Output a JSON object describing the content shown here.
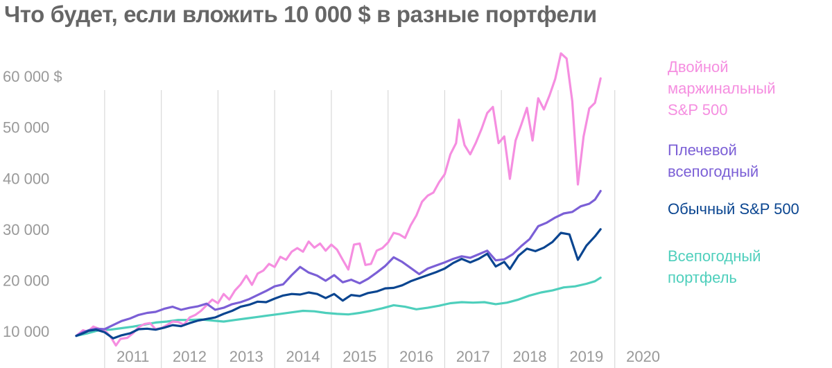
{
  "title": "Что будет, если вложить 10 000 $ в разные портфели",
  "chart_data": {
    "type": "line",
    "title": "Что будет, если вложить 10 000 $ в разные портфели",
    "xlabel": "",
    "ylabel": "",
    "xlim": [
      2010.5,
      2020.75
    ],
    "ylim": [
      7000,
      66000
    ],
    "grid": "vertical year separators",
    "legend_placement": "right, at line ends",
    "y_ticks": [
      {
        "value": 10000,
        "label": "10 000"
      },
      {
        "value": 20000,
        "label": "20 000"
      },
      {
        "value": 30000,
        "label": "30 000"
      },
      {
        "value": 40000,
        "label": "40 000"
      },
      {
        "value": 50000,
        "label": "50 000"
      },
      {
        "value": 60000,
        "label": "60 000 $"
      }
    ],
    "x_ticks": [
      {
        "value": 2011,
        "label": "2011"
      },
      {
        "value": 2012,
        "label": "2012"
      },
      {
        "value": 2013,
        "label": "2013"
      },
      {
        "value": 2014,
        "label": "2014"
      },
      {
        "value": 2015,
        "label": "2015"
      },
      {
        "value": 2016,
        "label": "2016"
      },
      {
        "value": 2017,
        "label": "2017"
      },
      {
        "value": 2018,
        "label": "2018"
      },
      {
        "value": 2019,
        "label": "2019"
      },
      {
        "value": 2020,
        "label": "2020"
      }
    ],
    "year_separators": [
      2011,
      2012,
      2013,
      2014,
      2015,
      2016,
      2017,
      2018,
      2019,
      2020
    ],
    "series": [
      {
        "name": "Двойной маржинальный S&P 500",
        "label_lines": [
          "Двойной",
          "маржинальный",
          "S&P 500"
        ],
        "color": "#f58ee0",
        "points": [
          [
            2010.5,
            9100
          ],
          [
            2010.62,
            10200
          ],
          [
            2010.7,
            9900
          ],
          [
            2010.8,
            10900
          ],
          [
            2010.92,
            10400
          ],
          [
            2011.0,
            10200
          ],
          [
            2011.1,
            9000
          ],
          [
            2011.2,
            7200
          ],
          [
            2011.28,
            8500
          ],
          [
            2011.4,
            8700
          ],
          [
            2011.5,
            9600
          ],
          [
            2011.6,
            10800
          ],
          [
            2011.7,
            11400
          ],
          [
            2011.8,
            11600
          ],
          [
            2011.9,
            10400
          ],
          [
            2012.0,
            10600
          ],
          [
            2012.1,
            11200
          ],
          [
            2012.2,
            11900
          ],
          [
            2012.3,
            11800
          ],
          [
            2012.4,
            11300
          ],
          [
            2012.5,
            12700
          ],
          [
            2012.6,
            13200
          ],
          [
            2012.7,
            14000
          ],
          [
            2012.8,
            15100
          ],
          [
            2012.9,
            16200
          ],
          [
            2013.0,
            15500
          ],
          [
            2013.1,
            17300
          ],
          [
            2013.2,
            16200
          ],
          [
            2013.3,
            18000
          ],
          [
            2013.4,
            19200
          ],
          [
            2013.5,
            20900
          ],
          [
            2013.6,
            19100
          ],
          [
            2013.7,
            21300
          ],
          [
            2013.8,
            21900
          ],
          [
            2013.9,
            23200
          ],
          [
            2014.0,
            22600
          ],
          [
            2014.1,
            24600
          ],
          [
            2014.2,
            24000
          ],
          [
            2014.3,
            25600
          ],
          [
            2014.4,
            26300
          ],
          [
            2014.5,
            25600
          ],
          [
            2014.6,
            27600
          ],
          [
            2014.7,
            26400
          ],
          [
            2014.8,
            27200
          ],
          [
            2014.9,
            25800
          ],
          [
            2015.0,
            27000
          ],
          [
            2015.1,
            26000
          ],
          [
            2015.2,
            24000
          ],
          [
            2015.3,
            22100
          ],
          [
            2015.4,
            27000
          ],
          [
            2015.5,
            27200
          ],
          [
            2015.6,
            23000
          ],
          [
            2015.7,
            23200
          ],
          [
            2015.8,
            25800
          ],
          [
            2015.9,
            26300
          ],
          [
            2016.0,
            27400
          ],
          [
            2016.1,
            29300
          ],
          [
            2016.2,
            29000
          ],
          [
            2016.3,
            28300
          ],
          [
            2016.4,
            30800
          ],
          [
            2016.5,
            32700
          ],
          [
            2016.6,
            35400
          ],
          [
            2016.7,
            36600
          ],
          [
            2016.8,
            37200
          ],
          [
            2016.9,
            39200
          ],
          [
            2017.0,
            40800
          ],
          [
            2017.1,
            44700
          ],
          [
            2017.2,
            46900
          ],
          [
            2017.25,
            51500
          ],
          [
            2017.35,
            46500
          ],
          [
            2017.45,
            44700
          ],
          [
            2017.55,
            47000
          ],
          [
            2017.65,
            49700
          ],
          [
            2017.75,
            52800
          ],
          [
            2017.85,
            54000
          ],
          [
            2017.95,
            46900
          ],
          [
            2018.05,
            48200
          ],
          [
            2018.15,
            39900
          ],
          [
            2018.25,
            47400
          ],
          [
            2018.35,
            50500
          ],
          [
            2018.45,
            53800
          ],
          [
            2018.55,
            47400
          ],
          [
            2018.65,
            55700
          ],
          [
            2018.75,
            53500
          ],
          [
            2018.85,
            56300
          ],
          [
            2018.95,
            59500
          ],
          [
            2019.05,
            64500
          ],
          [
            2019.15,
            63500
          ],
          [
            2019.25,
            55100
          ],
          [
            2019.35,
            38800
          ],
          [
            2019.45,
            48200
          ],
          [
            2019.55,
            53700
          ],
          [
            2019.65,
            54800
          ],
          [
            2019.75,
            59600
          ]
        ]
      },
      {
        "name": "Плечевой всепогодный",
        "label_lines": [
          "Плечевой",
          "всепогодный"
        ],
        "color": "#7b5fd6",
        "points": [
          [
            2010.5,
            9100
          ],
          [
            2010.62,
            9800
          ],
          [
            2010.72,
            10200
          ],
          [
            2010.85,
            10500
          ],
          [
            2011.0,
            10400
          ],
          [
            2011.15,
            11200
          ],
          [
            2011.3,
            12000
          ],
          [
            2011.45,
            12500
          ],
          [
            2011.6,
            13200
          ],
          [
            2011.75,
            13600
          ],
          [
            2011.9,
            13800
          ],
          [
            2012.05,
            14400
          ],
          [
            2012.2,
            14800
          ],
          [
            2012.35,
            14200
          ],
          [
            2012.5,
            14600
          ],
          [
            2012.65,
            14900
          ],
          [
            2012.8,
            15400
          ],
          [
            2012.95,
            14200
          ],
          [
            2013.1,
            14600
          ],
          [
            2013.25,
            15300
          ],
          [
            2013.4,
            15700
          ],
          [
            2013.55,
            16300
          ],
          [
            2013.7,
            17100
          ],
          [
            2013.85,
            17900
          ],
          [
            2014.0,
            18800
          ],
          [
            2014.15,
            19200
          ],
          [
            2014.3,
            21000
          ],
          [
            2014.45,
            22600
          ],
          [
            2014.6,
            21500
          ],
          [
            2014.75,
            20900
          ],
          [
            2014.9,
            19900
          ],
          [
            2015.05,
            21000
          ],
          [
            2015.2,
            19600
          ],
          [
            2015.35,
            20100
          ],
          [
            2015.5,
            19400
          ],
          [
            2015.65,
            20300
          ],
          [
            2015.8,
            21500
          ],
          [
            2015.95,
            22800
          ],
          [
            2016.1,
            24500
          ],
          [
            2016.25,
            23600
          ],
          [
            2016.4,
            22400
          ],
          [
            2016.55,
            21200
          ],
          [
            2016.7,
            22300
          ],
          [
            2016.85,
            22900
          ],
          [
            2017.0,
            23500
          ],
          [
            2017.15,
            24200
          ],
          [
            2017.3,
            24700
          ],
          [
            2017.45,
            24400
          ],
          [
            2017.6,
            25100
          ],
          [
            2017.75,
            25800
          ],
          [
            2017.9,
            23900
          ],
          [
            2018.05,
            24100
          ],
          [
            2018.2,
            25100
          ],
          [
            2018.35,
            26700
          ],
          [
            2018.5,
            28100
          ],
          [
            2018.65,
            30600
          ],
          [
            2018.8,
            31300
          ],
          [
            2018.95,
            32300
          ],
          [
            2019.1,
            33100
          ],
          [
            2019.25,
            33400
          ],
          [
            2019.4,
            34500
          ],
          [
            2019.55,
            35000
          ],
          [
            2019.65,
            35800
          ],
          [
            2019.75,
            37500
          ]
        ]
      },
      {
        "name": "Обычный S&P 500",
        "label_lines": [
          "Обычный S&P 500"
        ],
        "color": "#0a4590",
        "points": [
          [
            2010.5,
            9100
          ],
          [
            2010.62,
            9600
          ],
          [
            2010.72,
            10100
          ],
          [
            2010.85,
            10300
          ],
          [
            2011.0,
            9800
          ],
          [
            2011.15,
            8600
          ],
          [
            2011.3,
            9200
          ],
          [
            2011.45,
            9600
          ],
          [
            2011.6,
            10400
          ],
          [
            2011.75,
            10500
          ],
          [
            2011.9,
            10300
          ],
          [
            2012.05,
            10700
          ],
          [
            2012.2,
            11200
          ],
          [
            2012.35,
            11000
          ],
          [
            2012.5,
            11600
          ],
          [
            2012.65,
            12100
          ],
          [
            2012.8,
            12400
          ],
          [
            2012.95,
            12700
          ],
          [
            2013.1,
            13400
          ],
          [
            2013.25,
            14000
          ],
          [
            2013.4,
            14800
          ],
          [
            2013.55,
            15200
          ],
          [
            2013.7,
            15800
          ],
          [
            2013.85,
            15700
          ],
          [
            2014.0,
            16400
          ],
          [
            2014.15,
            17000
          ],
          [
            2014.3,
            17300
          ],
          [
            2014.45,
            17200
          ],
          [
            2014.6,
            17600
          ],
          [
            2014.75,
            17300
          ],
          [
            2014.9,
            16500
          ],
          [
            2015.05,
            17300
          ],
          [
            2015.2,
            16000
          ],
          [
            2015.35,
            17100
          ],
          [
            2015.5,
            16900
          ],
          [
            2015.65,
            17500
          ],
          [
            2015.8,
            17800
          ],
          [
            2015.95,
            18400
          ],
          [
            2016.1,
            18500
          ],
          [
            2016.25,
            19000
          ],
          [
            2016.4,
            19800
          ],
          [
            2016.55,
            20400
          ],
          [
            2016.7,
            21000
          ],
          [
            2016.85,
            21600
          ],
          [
            2017.0,
            22300
          ],
          [
            2017.15,
            23400
          ],
          [
            2017.3,
            24200
          ],
          [
            2017.45,
            23500
          ],
          [
            2017.6,
            24200
          ],
          [
            2017.75,
            25200
          ],
          [
            2017.9,
            22700
          ],
          [
            2018.05,
            23600
          ],
          [
            2018.15,
            22200
          ],
          [
            2018.3,
            24800
          ],
          [
            2018.45,
            26200
          ],
          [
            2018.6,
            25700
          ],
          [
            2018.75,
            26400
          ],
          [
            2018.9,
            27500
          ],
          [
            2019.05,
            29300
          ],
          [
            2019.2,
            29000
          ],
          [
            2019.35,
            24000
          ],
          [
            2019.5,
            26800
          ],
          [
            2019.65,
            28600
          ],
          [
            2019.75,
            30000
          ]
        ]
      },
      {
        "name": "Всепогодный портфель",
        "label_lines": [
          "Всепогодный",
          "портфель"
        ],
        "color": "#4ecfbc",
        "points": [
          [
            2010.5,
            9100
          ],
          [
            2010.7,
            9600
          ],
          [
            2010.9,
            10200
          ],
          [
            2011.1,
            10300
          ],
          [
            2011.3,
            10600
          ],
          [
            2011.5,
            10900
          ],
          [
            2011.7,
            11300
          ],
          [
            2011.9,
            11700
          ],
          [
            2012.1,
            11900
          ],
          [
            2012.3,
            12200
          ],
          [
            2012.5,
            12200
          ],
          [
            2012.7,
            12300
          ],
          [
            2012.9,
            12100
          ],
          [
            2013.1,
            11900
          ],
          [
            2013.3,
            12200
          ],
          [
            2013.5,
            12500
          ],
          [
            2013.7,
            12800
          ],
          [
            2013.9,
            13100
          ],
          [
            2014.1,
            13400
          ],
          [
            2014.3,
            13700
          ],
          [
            2014.5,
            14000
          ],
          [
            2014.7,
            13900
          ],
          [
            2014.9,
            13600
          ],
          [
            2015.1,
            13400
          ],
          [
            2015.3,
            13300
          ],
          [
            2015.5,
            13600
          ],
          [
            2015.7,
            14000
          ],
          [
            2015.9,
            14500
          ],
          [
            2016.1,
            15100
          ],
          [
            2016.3,
            14800
          ],
          [
            2016.5,
            14300
          ],
          [
            2016.7,
            14600
          ],
          [
            2016.9,
            15000
          ],
          [
            2017.1,
            15500
          ],
          [
            2017.3,
            15700
          ],
          [
            2017.5,
            15600
          ],
          [
            2017.7,
            15700
          ],
          [
            2017.9,
            15300
          ],
          [
            2018.1,
            15600
          ],
          [
            2018.3,
            16200
          ],
          [
            2018.5,
            17000
          ],
          [
            2018.7,
            17600
          ],
          [
            2018.9,
            18000
          ],
          [
            2019.1,
            18600
          ],
          [
            2019.3,
            18800
          ],
          [
            2019.5,
            19300
          ],
          [
            2019.65,
            19800
          ],
          [
            2019.75,
            20500
          ]
        ]
      }
    ]
  }
}
